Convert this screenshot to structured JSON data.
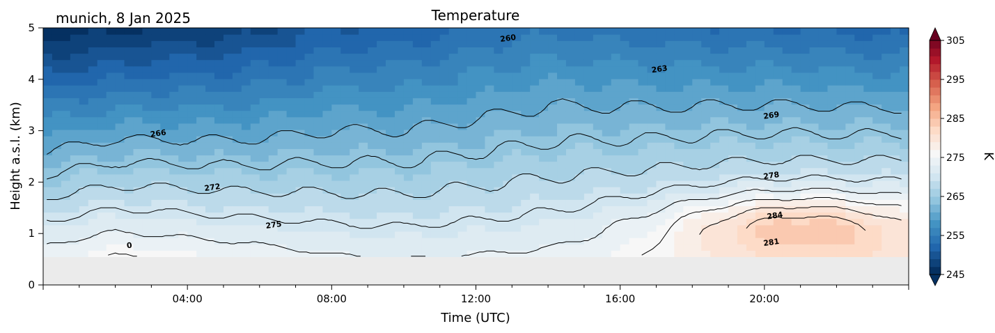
{
  "chart_data": {
    "type": "heatmap",
    "title": "Temperature",
    "subtitle": "munich, 8 Jan 2025",
    "xlabel": "Time (UTC)",
    "ylabel": "Height a.s.l. (km)",
    "xlim_hours": [
      0,
      24
    ],
    "ylim": [
      0,
      5
    ],
    "x_tick_labels": [
      "04:00",
      "08:00",
      "12:00",
      "16:00",
      "20:00"
    ],
    "x_tick_hours": [
      4,
      8,
      12,
      16,
      20
    ],
    "y_ticks": [
      0,
      1,
      2,
      3,
      4,
      5
    ],
    "data_bottom_km": 0.55,
    "missing_color": "#ebebeb",
    "colorbar": {
      "label": "K",
      "range": [
        245,
        305
      ],
      "ticks": [
        245,
        255,
        265,
        275,
        285,
        295,
        305
      ],
      "colormap": "RdBu_r",
      "colors_low_to_high": [
        "#053061",
        "#2166ac",
        "#4393c3",
        "#92c5de",
        "#d1e5f0",
        "#f7f7f7",
        "#fddbc7",
        "#f4a582",
        "#d6604d",
        "#b2182b",
        "#67001f"
      ]
    },
    "contour_lines_K": [
      260,
      263,
      266,
      269,
      272,
      275,
      278,
      281,
      284
    ],
    "contour_labels": [
      {
        "text": "260",
        "x": 12.9,
        "y": 4.75
      },
      {
        "text": "263",
        "x": 17.1,
        "y": 4.15
      },
      {
        "text": "266",
        "x": 3.2,
        "y": 2.9
      },
      {
        "text": "269",
        "x": 20.2,
        "y": 3.25
      },
      {
        "text": "272",
        "x": 4.7,
        "y": 1.85
      },
      {
        "text": "275",
        "x": 6.4,
        "y": 1.12
      },
      {
        "text": "278",
        "x": 20.2,
        "y": 2.08
      },
      {
        "text": "284",
        "x": 20.3,
        "y": 1.3
      },
      {
        "text": "281",
        "x": 20.2,
        "y": 0.78
      },
      {
        "text": "0",
        "x": 2.4,
        "y": 0.72
      }
    ],
    "profiles": [
      {
        "hour": 0,
        "surface_K": 277,
        "lapse_K_per_km": 6.5
      },
      {
        "hour": 2,
        "surface_K": 279,
        "lapse_K_per_km": 6.7
      },
      {
        "hour": 5.5,
        "surface_K": 277,
        "lapse_K_per_km": 6.0
      },
      {
        "hour": 8,
        "surface_K": 275,
        "lapse_K_per_km": 5.0
      },
      {
        "hour": 10,
        "surface_K": 274.5,
        "lapse_K_per_km": 4.8
      },
      {
        "hour": 14,
        "surface_K": 275,
        "lapse_K_per_km": 4.3
      },
      {
        "hour": 17,
        "surface_K": 277,
        "lapse_K_per_km": 4.9
      },
      {
        "hour": 20,
        "surface_K": 279,
        "lapse_K_per_km": 5.4
      },
      {
        "hour": 24,
        "surface_K": 280,
        "lapse_K_per_km": 5.8
      }
    ],
    "warm_layer": {
      "center_hour": 21,
      "center_km": 1.15,
      "amplitude_K": 10,
      "span_hours": 3.5,
      "span_km": 0.65
    }
  }
}
